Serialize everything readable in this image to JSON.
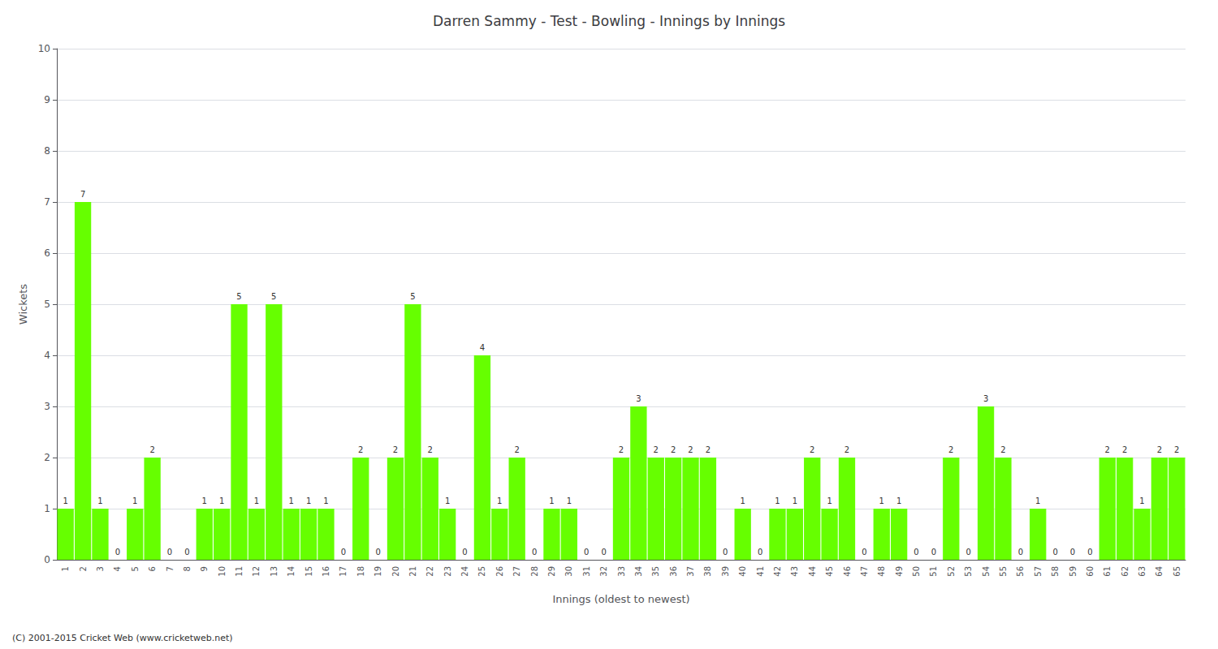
{
  "chart_data": {
    "type": "bar",
    "title": "Darren Sammy - Test - Bowling - Innings by Innings",
    "xlabel": "Innings (oldest to newest)",
    "ylabel": "Wickets",
    "footer": "(C) 2001-2015 Cricket Web (www.cricketweb.net)",
    "categories": [
      "1",
      "2",
      "3",
      "4",
      "5",
      "6",
      "7",
      "8",
      "9",
      "10",
      "11",
      "12",
      "13",
      "14",
      "15",
      "16",
      "17",
      "18",
      "19",
      "20",
      "21",
      "22",
      "23",
      "24",
      "25",
      "26",
      "27",
      "28",
      "29",
      "30",
      "31",
      "32",
      "33",
      "34",
      "35",
      "36",
      "37",
      "38",
      "39",
      "40",
      "41",
      "42",
      "43",
      "44",
      "45",
      "46",
      "47",
      "48",
      "49",
      "50",
      "51",
      "52",
      "53",
      "54",
      "55",
      "56",
      "57",
      "58",
      "59",
      "60",
      "61",
      "62",
      "63",
      "64",
      "65"
    ],
    "values": [
      1,
      7,
      1,
      0,
      1,
      2,
      0,
      0,
      1,
      1,
      5,
      1,
      5,
      1,
      1,
      1,
      0,
      2,
      0,
      2,
      5,
      2,
      1,
      0,
      4,
      1,
      2,
      0,
      1,
      1,
      0,
      0,
      2,
      3,
      2,
      2,
      2,
      2,
      0,
      1,
      0,
      1,
      1,
      2,
      1,
      2,
      0,
      1,
      1,
      0,
      0,
      2,
      0,
      3,
      2,
      0,
      1,
      0,
      0,
      0,
      2,
      2,
      1,
      2,
      2
    ],
    "color": "#66ff00",
    "ylim": [
      0,
      10
    ],
    "yticks": [
      0,
      1,
      2,
      3,
      4,
      5,
      6,
      7,
      8,
      9,
      10
    ],
    "grid": true,
    "data_labels": true
  }
}
